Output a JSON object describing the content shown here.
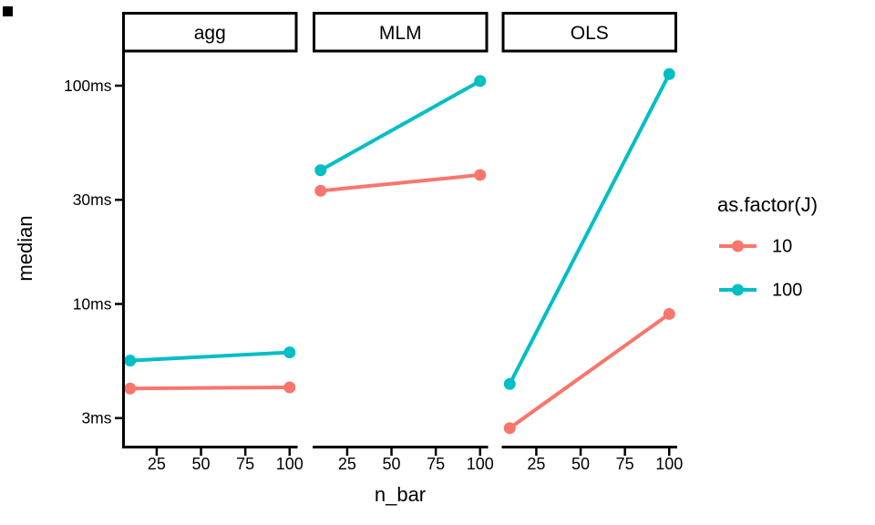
{
  "chart_data": {
    "type": "line",
    "title": "",
    "xlabel": "n_bar",
    "ylabel": "median",
    "x_scale": "linear",
    "y_scale": "log10",
    "x_domain": [
      5.5,
      104.5
    ],
    "x_ticks": [
      25,
      50,
      75,
      100
    ],
    "y_ticks": [
      {
        "value": 3,
        "label": "3ms"
      },
      {
        "value": 10,
        "label": "10ms"
      },
      {
        "value": 30,
        "label": "30ms"
      },
      {
        "value": 100,
        "label": "100ms"
      }
    ],
    "grid": "off",
    "facets": [
      {
        "label": "agg",
        "series": [
          {
            "name": "10",
            "points": [
              {
                "x": 10,
                "y": 4.1
              },
              {
                "x": 100,
                "y": 4.15
              }
            ]
          },
          {
            "name": "100",
            "points": [
              {
                "x": 10,
                "y": 5.5
              },
              {
                "x": 100,
                "y": 6.0
              }
            ]
          }
        ]
      },
      {
        "label": "MLM",
        "series": [
          {
            "name": "10",
            "points": [
              {
                "x": 10,
                "y": 33
              },
              {
                "x": 100,
                "y": 39
              }
            ]
          },
          {
            "name": "100",
            "points": [
              {
                "x": 10,
                "y": 41
              },
              {
                "x": 100,
                "y": 105
              }
            ]
          }
        ]
      },
      {
        "label": "OLS",
        "series": [
          {
            "name": "10",
            "points": [
              {
                "x": 10,
                "y": 2.7
              },
              {
                "x": 100,
                "y": 9.0
              }
            ]
          },
          {
            "name": "100",
            "points": [
              {
                "x": 10,
                "y": 4.3
              },
              {
                "x": 100,
                "y": 113
              }
            ]
          }
        ]
      }
    ],
    "legend": {
      "title": "as.factor(J)",
      "position": "right",
      "entries": [
        {
          "label": "10",
          "color": "#F8766D"
        },
        {
          "label": "100",
          "color": "#00BFC4"
        }
      ]
    },
    "colors": {
      "series_10": "#F8766D",
      "series_100": "#00BFC4",
      "axis": "#000000",
      "strip_fill": "#ffffff"
    }
  }
}
